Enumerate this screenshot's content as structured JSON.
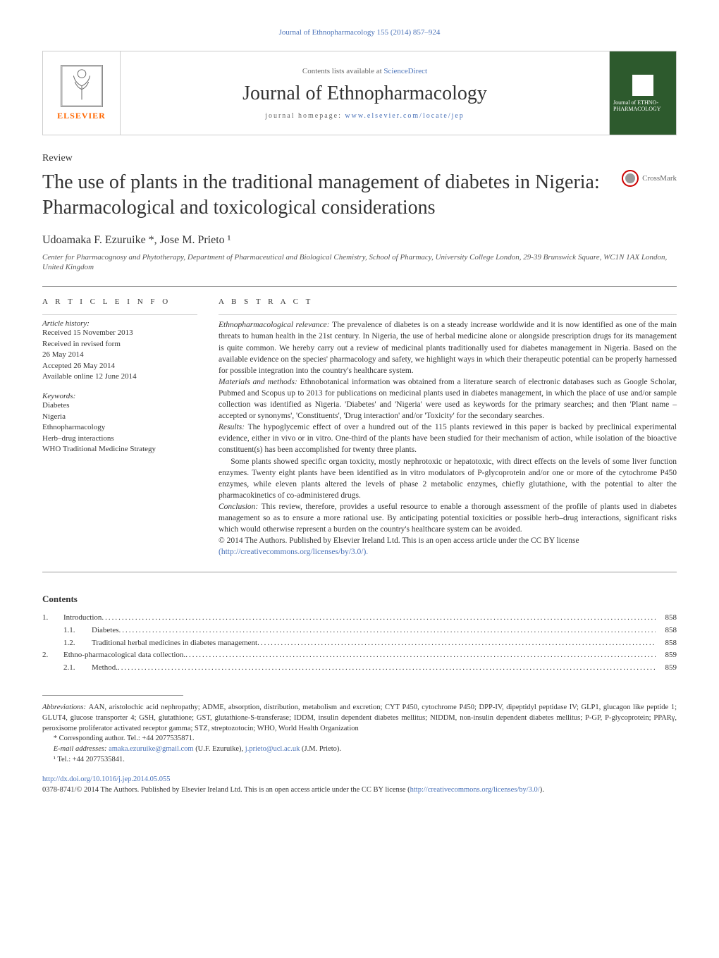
{
  "header": {
    "citation": "Journal of Ethnopharmacology 155 (2014) 857–924",
    "contentsLine": "Contents lists available at ",
    "contentsLink": "ScienceDirect",
    "journalTitle": "Journal of Ethnopharmacology",
    "homepagePrefix": "journal homepage: ",
    "homepageUrl": "www.elsevier.com/locate/jep",
    "publisherName": "ELSEVIER",
    "coverText": "Journal of ETHNO-PHARMACOLOGY"
  },
  "article": {
    "type": "Review",
    "title": "The use of plants in the traditional management of diabetes in Nigeria: Pharmacological and toxicological considerations",
    "crossmark": "CrossMark",
    "authors": "Udoamaka F. Ezuruike *, Jose M. Prieto ¹",
    "affiliation": "Center for Pharmacognosy and Phytotherapy, Department of Pharmaceutical and Biological Chemistry, School of Pharmacy, University College London, 29-39 Brunswick Square, WC1N 1AX London, United Kingdom"
  },
  "articleInfo": {
    "heading": "A R T I C L E  I N F O",
    "historyHead": "Article history:",
    "history": [
      "Received 15 November 2013",
      "Received in revised form",
      "26 May 2014",
      "Accepted 26 May 2014",
      "Available online 12 June 2014"
    ],
    "keywordsHead": "Keywords:",
    "keywords": [
      "Diabetes",
      "Nigeria",
      "Ethnopharmacology",
      "Herb–drug interactions",
      "WHO Traditional Medicine Strategy"
    ]
  },
  "abstract": {
    "heading": "A B S T R A C T",
    "p1Label": "Ethnopharmacological relevance: ",
    "p1": "The prevalence of diabetes is on a steady increase worldwide and it is now identified as one of the main threats to human health in the 21st century. In Nigeria, the use of herbal medicine alone or alongside prescription drugs for its management is quite common. We hereby carry out a review of medicinal plants traditionally used for diabetes management in Nigeria. Based on the available evidence on the species' pharmacology and safety, we highlight ways in which their therapeutic potential can be properly harnessed for possible integration into the country's healthcare system.",
    "p2Label": "Materials and methods: ",
    "p2": "Ethnobotanical information was obtained from a literature search of electronic databases such as Google Scholar, Pubmed and Scopus up to 2013 for publications on medicinal plants used in diabetes management, in which the place of use and/or sample collection was identified as Nigeria. 'Diabetes' and 'Nigeria' were used as keywords for the primary searches; and then 'Plant name – accepted or synonyms', 'Constituents', 'Drug interaction' and/or 'Toxicity' for the secondary searches.",
    "p3Label": "Results: ",
    "p3": "The hypoglycemic effect of over a hundred out of the 115 plants reviewed in this paper is backed by preclinical experimental evidence, either in vivo or in vitro. One-third of the plants have been studied for their mechanism of action, while isolation of the bioactive constituent(s) has been accomplished for twenty three plants.",
    "p4": "Some plants showed specific organ toxicity, mostly nephrotoxic or hepatotoxic, with direct effects on the levels of some liver function enzymes. Twenty eight plants have been identified as in vitro modulators of P-glycoprotein and/or one or more of the cytochrome P450 enzymes, while eleven plants altered the levels of phase 2 metabolic enzymes, chiefly glutathione, with the potential to alter the pharmacokinetics of co-administered drugs.",
    "p5Label": "Conclusion: ",
    "p5": "This review, therefore, provides a useful resource to enable a thorough assessment of the profile of plants used in diabetes management so as to ensure a more rational use. By anticipating potential toxicities or possible herb–drug interactions, significant risks which would otherwise represent a burden on the country's healthcare system can be avoided.",
    "copyright": "© 2014 The Authors. Published by Elsevier Ireland Ltd. This is an open access article under the CC BY license",
    "licenseUrl": "(http://creativecommons.org/licenses/by/3.0/)."
  },
  "contents": {
    "heading": "Contents",
    "items": [
      {
        "num": "1.",
        "text": "Introduction",
        "page": "858",
        "sub": false
      },
      {
        "num": "1.1.",
        "text": "Diabetes",
        "page": "858",
        "sub": true
      },
      {
        "num": "1.2.",
        "text": "Traditional herbal medicines in diabetes management",
        "page": "858",
        "sub": true
      },
      {
        "num": "2.",
        "text": "Ethno-pharmacological data collection.",
        "page": "859",
        "sub": false
      },
      {
        "num": "2.1.",
        "text": "Method.",
        "page": "859",
        "sub": true
      }
    ]
  },
  "footnotes": {
    "abbrevLabel": "Abbreviations: ",
    "abbrev": "AAN, aristolochic acid nephropathy; ADME, absorption, distribution, metabolism and excretion; CYT P450, cytochrome P450; DPP-IV, dipeptidyl peptidase IV; GLP1, glucagon like peptide 1; GLUT4, glucose transporter 4; GSH, glutathione; GST, glutathione-S-transferase; IDDM, insulin dependent diabetes mellitus; NIDDM, non-insulin dependent diabetes mellitus; P-GP, P-glycoprotein; PPARγ, peroxisome proliferator activated receptor gamma; STZ, streptozotocin; WHO, World Health Organization",
    "corr": "* Corresponding author. Tel.: +44 2077535871.",
    "emailLabel": "E-mail addresses: ",
    "email1": "amaka.ezuruike@gmail.com",
    "email1who": " (U.F. Ezuruike), ",
    "email2": "j.prieto@ucl.ac.uk",
    "email2who": " (J.M. Prieto).",
    "tel": "¹ Tel.: +44 2077535841.",
    "doi": "http://dx.doi.org/10.1016/j.jep.2014.05.055",
    "issn": "0378-8741/© 2014 The Authors. Published by Elsevier Ireland Ltd. This is an open access article under the CC BY license (",
    "issnUrl": "http://creativecommons.org/licenses/by/3.0/",
    "issnEnd": ")."
  }
}
